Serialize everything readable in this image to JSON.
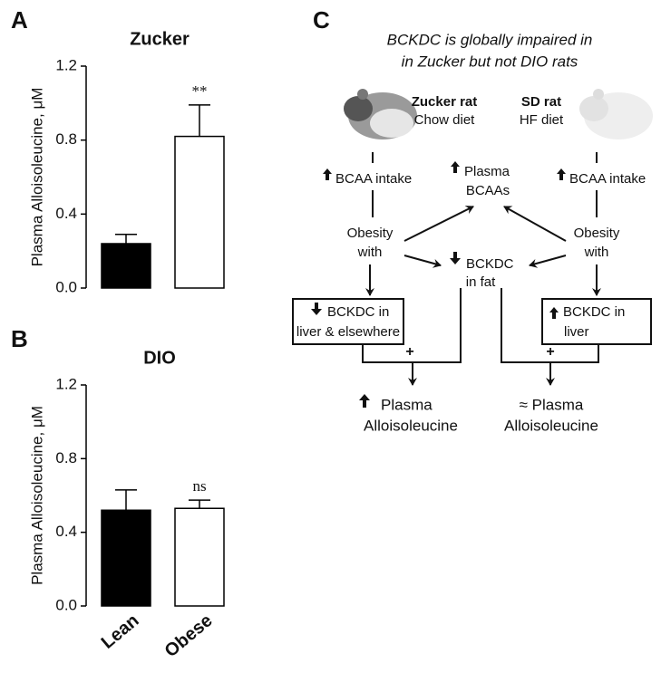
{
  "chart_data": [
    {
      "type": "bar",
      "panel": "A",
      "title": "Zucker",
      "ylabel": "Plasma  Alloisoleucine, μM",
      "categories": [
        null,
        null
      ],
      "values": [
        0.24,
        0.82
      ],
      "errors": [
        0.05,
        0.17
      ],
      "colors": [
        "#000000",
        "#ffffff"
      ],
      "annotations": [
        null,
        "**"
      ],
      "ylim": [
        0,
        1.2
      ],
      "yticks": [
        {
          "value": 0,
          "label": "0.0"
        },
        0.4,
        0.8,
        1.2
      ]
    },
    {
      "type": "bar",
      "panel": "B",
      "title": "DIO",
      "ylabel": "Plasma  Alloisoleucine, μM",
      "categories": [
        "Lean",
        "Obese"
      ],
      "values": [
        0.52,
        0.53
      ],
      "errors": [
        0.11,
        0.045
      ],
      "colors": [
        "#000000",
        "#ffffff"
      ],
      "annotations": [
        null,
        "ns"
      ],
      "ylim": [
        0,
        1.2
      ],
      "yticks": [
        {
          "value": 0,
          "label": "0.0"
        },
        0.4,
        0.8,
        1.2
      ]
    }
  ],
  "diagram": {
    "panel": "C",
    "title": [
      "BCKDC is globally impaired in",
      "in Zucker but not DIO rats"
    ],
    "zucker": [
      "Zucker rat",
      "Chow diet"
    ],
    "sd": [
      "SD rat",
      "HF diet"
    ],
    "intake_left": "BCAA intake",
    "intake_right": "BCAA intake",
    "plasma_bcaas": [
      "Plasma",
      "BCAAs"
    ],
    "obesity_left": [
      "Obesity",
      "with"
    ],
    "obesity_right": [
      "Obesity",
      "with"
    ],
    "bckdc_fat": [
      "BCKDC",
      "in fat"
    ],
    "box_left": [
      "BCKDC in",
      "liver & elsewhere"
    ],
    "box_right": [
      "BCKDC in",
      "liver"
    ],
    "plus_left": "+",
    "plus_right": "+",
    "outcome_left": [
      "Plasma",
      "Alloisoleucine"
    ],
    "outcome_right": [
      "≈  Plasma",
      "Alloisoleucine"
    ]
  }
}
